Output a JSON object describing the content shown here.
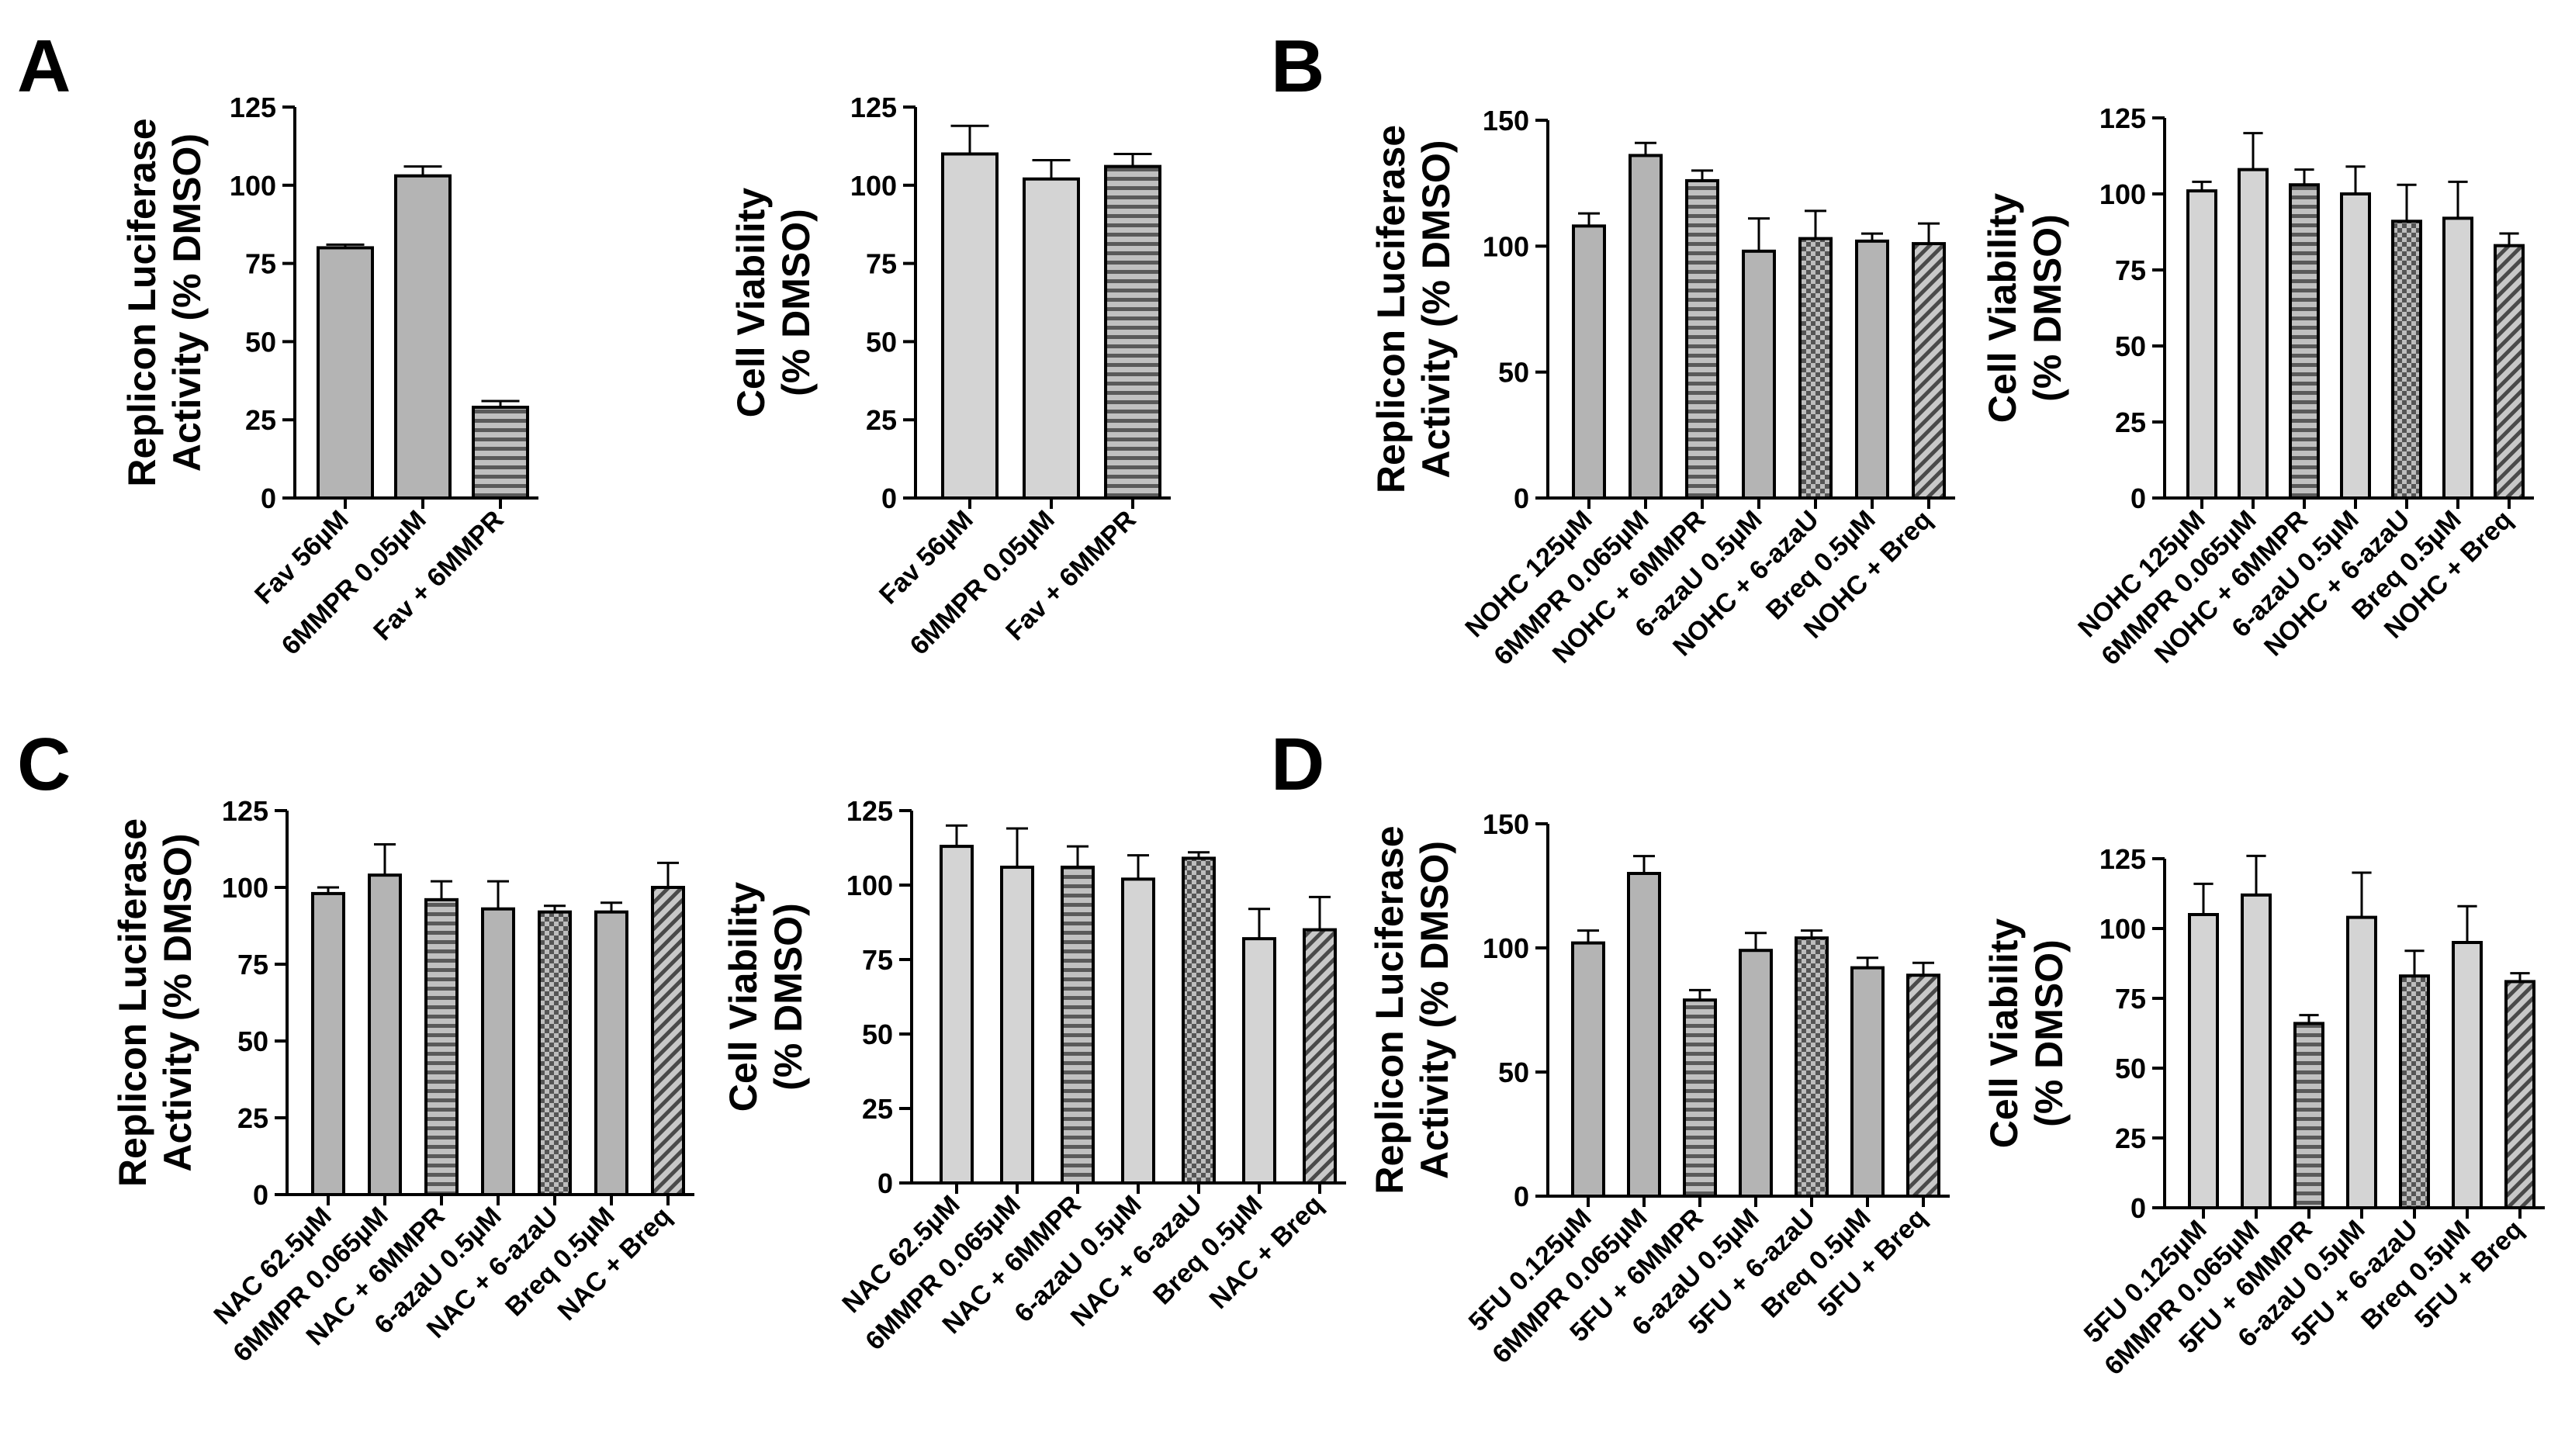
{
  "panels": [
    "A",
    "B",
    "C",
    "D"
  ],
  "chart_data": [
    {
      "panel": "A",
      "type": "bar",
      "title": "",
      "ylabel": [
        "Replicon Luciferase",
        "Activity (% DMSO)"
      ],
      "ylim": [
        0,
        125
      ],
      "yticks": [
        0,
        25,
        50,
        75,
        100,
        125
      ],
      "categories": [
        "Fav 56µM",
        "6MMPR 0.05µM",
        "Fav + 6MMPR"
      ],
      "values": [
        80,
        103,
        29
      ],
      "errors": [
        1,
        3,
        2
      ],
      "patterns": [
        "solid",
        "solid",
        "hstripes"
      ],
      "fills": [
        "#b4b4b4",
        "#b4b4b4",
        "#b4b4b4"
      ]
    },
    {
      "panel": "A",
      "type": "bar",
      "title": "",
      "ylabel": [
        "Cell Viability",
        "(% DMSO)"
      ],
      "ylim": [
        0,
        125
      ],
      "yticks": [
        0,
        25,
        50,
        75,
        100,
        125
      ],
      "categories": [
        "Fav 56µM",
        "6MMPR 0.05µM",
        "Fav + 6MMPR"
      ],
      "values": [
        110,
        102,
        106
      ],
      "errors": [
        9,
        6,
        4
      ],
      "patterns": [
        "solid",
        "solid",
        "hstripes"
      ],
      "fills": [
        "#d4d4d4",
        "#d4d4d4",
        "#d4d4d4"
      ]
    },
    {
      "panel": "B",
      "type": "bar",
      "title": "",
      "ylabel": [
        "Replicon Luciferase",
        "Activity (% DMSO)"
      ],
      "ylim": [
        0,
        150
      ],
      "yticks": [
        0,
        50,
        100,
        150
      ],
      "categories": [
        "NOHC 125µM",
        "6MMPR 0.065µM",
        "NOHC + 6MMPR",
        "6-azaU 0.5µM",
        "NOHC + 6-azaU",
        "Breq 0.5µM",
        "NOHC + Breq"
      ],
      "values": [
        108,
        136,
        126,
        98,
        103,
        102,
        101
      ],
      "errors": [
        5,
        5,
        4,
        13,
        11,
        3,
        8
      ],
      "patterns": [
        "solid",
        "solid",
        "hstripes",
        "solid",
        "checker",
        "solid",
        "diag"
      ],
      "fills": [
        "#b4b4b4",
        "#b4b4b4",
        "#b4b4b4",
        "#b4b4b4",
        "#b4b4b4",
        "#b4b4b4",
        "#b4b4b4"
      ]
    },
    {
      "panel": "B",
      "type": "bar",
      "title": "",
      "ylabel": [
        "Cell Viability",
        "(% DMSO)"
      ],
      "ylim": [
        0,
        125
      ],
      "yticks": [
        0,
        25,
        50,
        75,
        100,
        125
      ],
      "categories": [
        "NOHC 125µM",
        "6MMPR 0.065µM",
        "NOHC + 6MMPR",
        "6-azaU 0.5µM",
        "NOHC + 6-azaU",
        "Breq 0.5µM",
        "NOHC + Breq"
      ],
      "values": [
        101,
        108,
        103,
        100,
        91,
        92,
        83
      ],
      "errors": [
        3,
        12,
        5,
        9,
        12,
        12,
        4
      ],
      "patterns": [
        "solid",
        "solid",
        "hstripes",
        "solid",
        "checker",
        "solid",
        "diag"
      ],
      "fills": [
        "#d4d4d4",
        "#d4d4d4",
        "#d4d4d4",
        "#d4d4d4",
        "#d4d4d4",
        "#d4d4d4",
        "#d4d4d4"
      ]
    },
    {
      "panel": "C",
      "type": "bar",
      "title": "",
      "ylabel": [
        "Replicon Luciferase",
        "Activity (% DMSO)"
      ],
      "ylim": [
        0,
        125
      ],
      "yticks": [
        0,
        25,
        50,
        75,
        100,
        125
      ],
      "categories": [
        "NAC 62.5µM",
        "6MMPR 0.065µM",
        "NAC + 6MMPR",
        "6-azaU 0.5µM",
        "NAC + 6-azaU",
        "Breq 0.5µM",
        "NAC + Breq"
      ],
      "values": [
        98,
        104,
        96,
        93,
        92,
        92,
        100
      ],
      "errors": [
        2,
        10,
        6,
        9,
        2,
        3,
        8
      ],
      "patterns": [
        "solid",
        "solid",
        "hstripes",
        "solid",
        "checker",
        "solid",
        "diag"
      ],
      "fills": [
        "#b4b4b4",
        "#b4b4b4",
        "#b4b4b4",
        "#b4b4b4",
        "#b4b4b4",
        "#b4b4b4",
        "#b4b4b4"
      ]
    },
    {
      "panel": "C",
      "type": "bar",
      "title": "",
      "ylabel": [
        "Cell Viability",
        "(% DMSO)"
      ],
      "ylim": [
        0,
        125
      ],
      "yticks": [
        0,
        25,
        50,
        75,
        100,
        125
      ],
      "categories": [
        "NAC 62.5µM",
        "6MMPR 0.065µM",
        "NAC + 6MMPR",
        "6-azaU 0.5µM",
        "NAC + 6-azaU",
        "Breq 0.5µM",
        "NAC + Breq"
      ],
      "values": [
        113,
        106,
        106,
        102,
        109,
        82,
        85
      ],
      "errors": [
        7,
        13,
        7,
        8,
        2,
        10,
        11
      ],
      "patterns": [
        "solid",
        "solid",
        "hstripes",
        "solid",
        "checker",
        "solid",
        "diag"
      ],
      "fills": [
        "#d4d4d4",
        "#d4d4d4",
        "#d4d4d4",
        "#d4d4d4",
        "#d4d4d4",
        "#d4d4d4",
        "#d4d4d4"
      ]
    },
    {
      "panel": "D",
      "type": "bar",
      "title": "",
      "ylabel": [
        "Replicon Luciferase",
        "Activity (% DMSO)"
      ],
      "ylim": [
        0,
        150
      ],
      "yticks": [
        0,
        50,
        100,
        150
      ],
      "categories": [
        "5FU 0.125µM",
        "6MMPR 0.065µM",
        "5FU + 6MMPR",
        "6-azaU 0.5µM",
        "5FU + 6-azaU",
        "Breq 0.5µM",
        "5FU + Breq"
      ],
      "values": [
        102,
        130,
        79,
        99,
        104,
        92,
        89
      ],
      "errors": [
        5,
        7,
        4,
        7,
        3,
        4,
        5
      ],
      "patterns": [
        "solid",
        "solid",
        "hstripes",
        "solid",
        "checker",
        "solid",
        "diag"
      ],
      "fills": [
        "#b4b4b4",
        "#b4b4b4",
        "#b4b4b4",
        "#b4b4b4",
        "#b4b4b4",
        "#b4b4b4",
        "#b4b4b4"
      ]
    },
    {
      "panel": "D",
      "type": "bar",
      "title": "",
      "ylabel": [
        "Cell Viability",
        "(% DMSO)"
      ],
      "ylim": [
        0,
        125
      ],
      "yticks": [
        0,
        25,
        50,
        75,
        100,
        125
      ],
      "categories": [
        "5FU 0.125µM",
        "6MMPR 0.065µM",
        "5FU + 6MMPR",
        "6-azaU 0.5µM",
        "5FU + 6-azaU",
        "Breq 0.5µM",
        "5FU + Breq"
      ],
      "values": [
        105,
        112,
        66,
        104,
        83,
        95,
        81
      ],
      "errors": [
        11,
        14,
        3,
        16,
        9,
        13,
        3
      ],
      "patterns": [
        "solid",
        "solid",
        "hstripes",
        "solid",
        "checker",
        "solid",
        "diag"
      ],
      "fills": [
        "#d4d4d4",
        "#d4d4d4",
        "#d4d4d4",
        "#d4d4d4",
        "#d4d4d4",
        "#d4d4d4",
        "#d4d4d4"
      ]
    }
  ]
}
